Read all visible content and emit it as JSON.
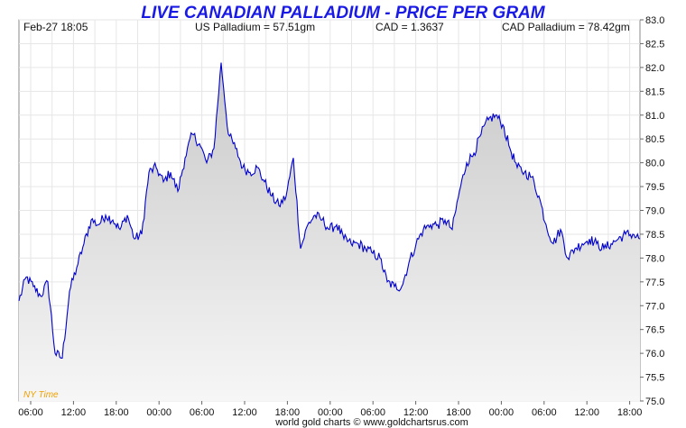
{
  "header": {
    "title": "LIVE CANADIAN PALLADIUM - PRICE PER GRAM",
    "datetime": "Feb-27  18:05",
    "us_price": "US Palladium = 57.51gm",
    "fx_rate": "CAD = 1.3637",
    "cad_price": "CAD Palladium = 78.42gm"
  },
  "timezone_label": "NY Time",
  "footer": "world gold charts © www.goldchartsrus.com",
  "colors": {
    "title": "#1a1ae6",
    "line": "#0000cc",
    "area_top": "#cfcfcf",
    "area_bottom": "#f4f4f4",
    "timezone": "#f0a000"
  },
  "chart_data": {
    "type": "area",
    "ylim": [
      75.0,
      83.0
    ],
    "yticks": [
      "83.0",
      "82.5",
      "82.0",
      "81.5",
      "81.0",
      "80.5",
      "80.0",
      "79.5",
      "79.0",
      "78.5",
      "78.0",
      "77.5",
      "77.0",
      "76.5",
      "76.0",
      "75.5",
      "75.0"
    ],
    "xticks": [
      "06:00",
      "12:00",
      "18:00",
      "00:00",
      "06:00",
      "12:00",
      "18:00",
      "00:00",
      "06:00",
      "12:00",
      "18:00",
      "00:00",
      "06:00",
      "12:00",
      "18:00"
    ],
    "xlim": [
      0,
      86
    ],
    "x": [
      0,
      1,
      2,
      3,
      4,
      5,
      6,
      7,
      8,
      9,
      10,
      11,
      12,
      13,
      14,
      15,
      16,
      17,
      18,
      19,
      20,
      21,
      22,
      23,
      24,
      25,
      26,
      27,
      28,
      29,
      30,
      31,
      32,
      33,
      34,
      35,
      36,
      37,
      38,
      39,
      40,
      41,
      42,
      43,
      44,
      45,
      46,
      47,
      48,
      49,
      50,
      51,
      52,
      53,
      54,
      55,
      56,
      57,
      58,
      59,
      60,
      61,
      62,
      63,
      64,
      65,
      66,
      67,
      68,
      69,
      70,
      71,
      72,
      73,
      74,
      75,
      76,
      77,
      78,
      79,
      80,
      81,
      82,
      83,
      84,
      85,
      86
    ],
    "values": [
      77.1,
      77.6,
      77.4,
      77.2,
      77.5,
      76.0,
      75.9,
      77.3,
      77.8,
      78.3,
      78.8,
      78.7,
      78.9,
      78.8,
      78.6,
      78.9,
      78.4,
      78.5,
      79.8,
      79.9,
      79.6,
      79.8,
      79.4,
      80.1,
      80.6,
      80.4,
      80.0,
      80.3,
      82.1,
      80.6,
      80.3,
      79.9,
      79.8,
      79.9,
      79.6,
      79.3,
      79.1,
      79.3,
      80.1,
      78.2,
      78.7,
      78.9,
      78.8,
      78.6,
      78.7,
      78.4,
      78.3,
      78.3,
      78.2,
      78.1,
      78.0,
      77.5,
      77.4,
      77.4,
      77.9,
      78.3,
      78.6,
      78.7,
      78.7,
      78.8,
      78.6,
      79.4,
      80.0,
      80.2,
      80.6,
      80.9,
      81.0,
      80.8,
      80.3,
      79.9,
      79.8,
      79.7,
      79.3,
      78.7,
      78.3,
      78.6,
      78.0,
      78.2,
      78.3,
      78.4,
      78.3,
      78.2,
      78.3,
      78.4,
      78.5,
      78.5,
      78.4
    ],
    "last_value": 78.42
  }
}
